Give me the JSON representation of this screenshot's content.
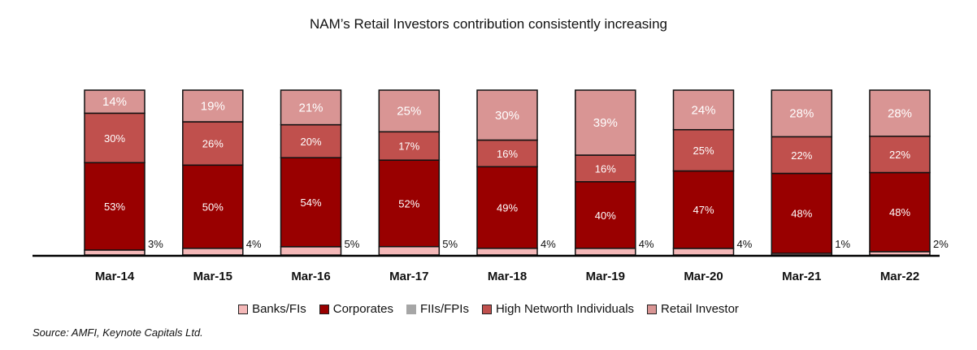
{
  "chart_data": {
    "type": "bar",
    "stacked": true,
    "title": "NAM’s Retail Investors contribution consistently increasing",
    "categories": [
      "Mar-14",
      "Mar-15",
      "Mar-16",
      "Mar-17",
      "Mar-18",
      "Mar-19",
      "Mar-20",
      "Mar-21",
      "Mar-22"
    ],
    "series": [
      {
        "name": "Banks/FIs",
        "color": "#f4b8b8",
        "values": [
          3,
          4,
          5,
          5,
          4,
          4,
          4,
          1,
          2
        ],
        "labels": [
          "3%",
          "4%",
          "5%",
          "5%",
          "4%",
          "4%",
          "4%",
          "1%",
          "2%"
        ]
      },
      {
        "name": "Corporates",
        "color": "#990000",
        "values": [
          53,
          50,
          54,
          52,
          49,
          40,
          47,
          48,
          48
        ],
        "labels": [
          "53%",
          "50%",
          "54%",
          "52%",
          "49%",
          "40%",
          "47%",
          "48%",
          "48%"
        ]
      },
      {
        "name": "FIIs/FPIs",
        "color": "#a6a6a6",
        "values": [
          0,
          0,
          0,
          0,
          0,
          0,
          0,
          0,
          0
        ],
        "labels": [
          "",
          "",
          "",
          "",
          "",
          "",
          "",
          "",
          ""
        ]
      },
      {
        "name": "High Networth Individuals",
        "color": "#c0504d",
        "values": [
          30,
          26,
          20,
          17,
          16,
          16,
          25,
          22,
          22
        ],
        "labels": [
          "30%",
          "26%",
          "20%",
          "17%",
          "16%",
          "16%",
          "25%",
          "22%",
          "22%"
        ]
      },
      {
        "name": "Retail Investor",
        "color": "#d99594",
        "values": [
          14,
          19,
          21,
          25,
          30,
          39,
          24,
          28,
          28
        ],
        "labels": [
          "14%",
          "19%",
          "21%",
          "25%",
          "30%",
          "39%",
          "24%",
          "28%",
          "28%"
        ]
      }
    ],
    "legend_position": "bottom",
    "grid": false
  },
  "source": "Source: AMFI, Keynote Capitals Ltd."
}
